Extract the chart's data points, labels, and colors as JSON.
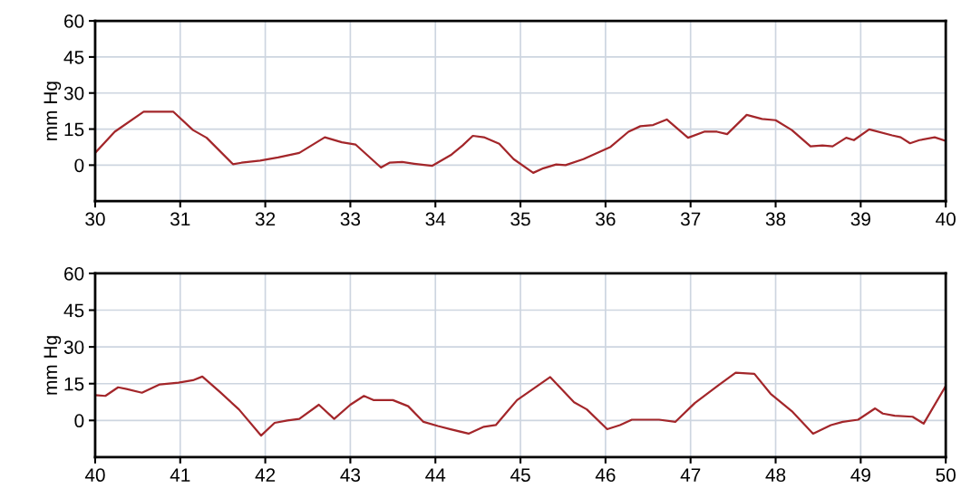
{
  "chart_data": [
    {
      "type": "line",
      "ylabel": "mm Hg",
      "xlim": [
        30,
        40
      ],
      "xticks": [
        30,
        31,
        32,
        33,
        34,
        35,
        36,
        37,
        38,
        39,
        40
      ],
      "ylim": [
        -15,
        60
      ],
      "yticks": [
        0,
        15,
        30,
        45,
        60
      ],
      "grid": true,
      "series": [
        {
          "color": "#a3262a",
          "x": [
            30.0,
            30.23,
            30.57,
            30.92,
            31.15,
            31.31,
            31.62,
            31.72,
            31.94,
            32.15,
            32.4,
            32.7,
            32.9,
            33.06,
            33.36,
            33.46,
            33.61,
            33.75,
            33.96,
            34.19,
            34.32,
            34.44,
            34.57,
            34.75,
            34.92,
            35.15,
            35.27,
            35.42,
            35.53,
            35.74,
            36.06,
            36.27,
            36.41,
            36.56,
            36.72,
            36.97,
            37.16,
            37.31,
            37.43,
            37.66,
            37.84,
            38.0,
            38.19,
            38.41,
            38.55,
            38.67,
            38.83,
            38.92,
            39.1,
            39.37,
            39.47,
            39.58,
            39.69,
            39.87,
            40.0
          ],
          "values": [
            5.1,
            13.9,
            22.2,
            22.2,
            14.6,
            11.4,
            0.4,
            1.0,
            1.9,
            3.2,
            5.1,
            11.6,
            9.5,
            8.6,
            -1.0,
            1.0,
            1.3,
            0.6,
            -0.3,
            4.4,
            8.2,
            12.2,
            11.6,
            8.9,
            2.5,
            -3.2,
            -1.3,
            0.3,
            0.0,
            2.5,
            7.6,
            13.9,
            16.2,
            16.7,
            19.0,
            11.4,
            13.9,
            13.9,
            12.9,
            20.9,
            19.2,
            18.7,
            14.6,
            7.8,
            8.2,
            7.8,
            11.4,
            10.4,
            14.9,
            12.4,
            11.6,
            9.1,
            10.4,
            11.6,
            10.1
          ]
        }
      ]
    },
    {
      "type": "line",
      "ylabel": "mm Hg",
      "xlim": [
        40,
        50
      ],
      "xticks": [
        40,
        41,
        42,
        43,
        44,
        45,
        46,
        47,
        48,
        49,
        50
      ],
      "ylim": [
        -15,
        60
      ],
      "yticks": [
        0,
        15,
        30,
        45,
        60
      ],
      "grid": true,
      "series": [
        {
          "color": "#a3262a",
          "x": [
            40.0,
            40.12,
            40.27,
            40.37,
            40.55,
            40.76,
            40.98,
            41.15,
            41.26,
            41.47,
            41.69,
            41.95,
            42.11,
            42.26,
            42.4,
            42.63,
            42.81,
            43.0,
            43.16,
            43.27,
            43.5,
            43.68,
            43.86,
            44.03,
            44.18,
            44.39,
            44.57,
            44.71,
            44.85,
            44.96,
            45.35,
            45.63,
            45.78,
            46.02,
            46.17,
            46.31,
            46.63,
            46.82,
            47.05,
            47.34,
            47.53,
            47.75,
            47.94,
            48.19,
            48.44,
            48.65,
            48.79,
            48.97,
            49.17,
            49.26,
            49.4,
            49.61,
            49.74,
            50.0
          ],
          "values": [
            10.3,
            10.0,
            13.5,
            12.8,
            11.3,
            14.7,
            15.4,
            16.4,
            17.9,
            11.5,
            4.5,
            -6.2,
            -1.0,
            0.0,
            0.6,
            6.4,
            0.6,
            6.4,
            10.0,
            8.3,
            8.3,
            5.8,
            -0.6,
            -2.3,
            -3.6,
            -5.4,
            -2.6,
            -1.9,
            3.8,
            8.3,
            17.7,
            7.4,
            4.5,
            -3.6,
            -1.9,
            0.3,
            0.3,
            -0.6,
            7.1,
            14.7,
            19.5,
            19.0,
            10.9,
            3.8,
            -5.4,
            -1.9,
            -0.6,
            0.3,
            4.9,
            2.8,
            1.9,
            1.5,
            -1.3,
            14.1
          ]
        }
      ]
    }
  ]
}
